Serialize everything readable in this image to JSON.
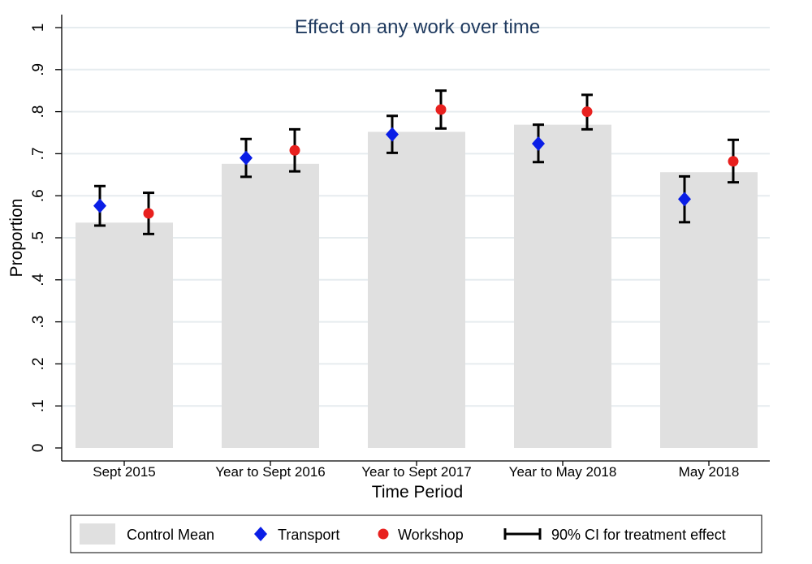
{
  "chart_data": {
    "type": "bar",
    "title": "Effect on any work over time",
    "xlabel": "Time Period",
    "ylabel": "Proportion",
    "ylim": [
      0,
      1
    ],
    "yticks": [
      0,
      0.1,
      0.2,
      0.3,
      0.4,
      0.5,
      0.6,
      0.7,
      0.8,
      0.9,
      1
    ],
    "ytick_labels": [
      "0",
      ".1",
      ".2",
      ".3",
      ".4",
      ".5",
      ".6",
      ".7",
      ".8",
      ".9",
      "1"
    ],
    "categories": [
      "Sept 2015",
      "Year to Sept 2016",
      "Year to Sept 2017",
      "Year to May 2018",
      "May 2018"
    ],
    "grid": true,
    "legend_position": "bottom",
    "series": [
      {
        "name": "Control Mean",
        "kind": "bar",
        "color": "#e0e0e0",
        "values": [
          0.536,
          0.676,
          0.752,
          0.769,
          0.656
        ]
      },
      {
        "name": "Transport",
        "kind": "point",
        "marker": "diamond",
        "color": "#0a1ee6",
        "values": [
          0.576,
          0.69,
          0.746,
          0.724,
          0.592
        ],
        "ci_low": [
          0.529,
          0.645,
          0.702,
          0.68,
          0.537
        ],
        "ci_high": [
          0.623,
          0.735,
          0.79,
          0.769,
          0.646
        ]
      },
      {
        "name": "Workshop",
        "kind": "point",
        "marker": "circle",
        "color": "#e8201e",
        "values": [
          0.558,
          0.708,
          0.805,
          0.8,
          0.682
        ],
        "ci_low": [
          0.509,
          0.658,
          0.76,
          0.758,
          0.632
        ],
        "ci_high": [
          0.607,
          0.758,
          0.85,
          0.84,
          0.733
        ]
      }
    ],
    "ci_legend_label": "90% CI for treatment effect"
  }
}
